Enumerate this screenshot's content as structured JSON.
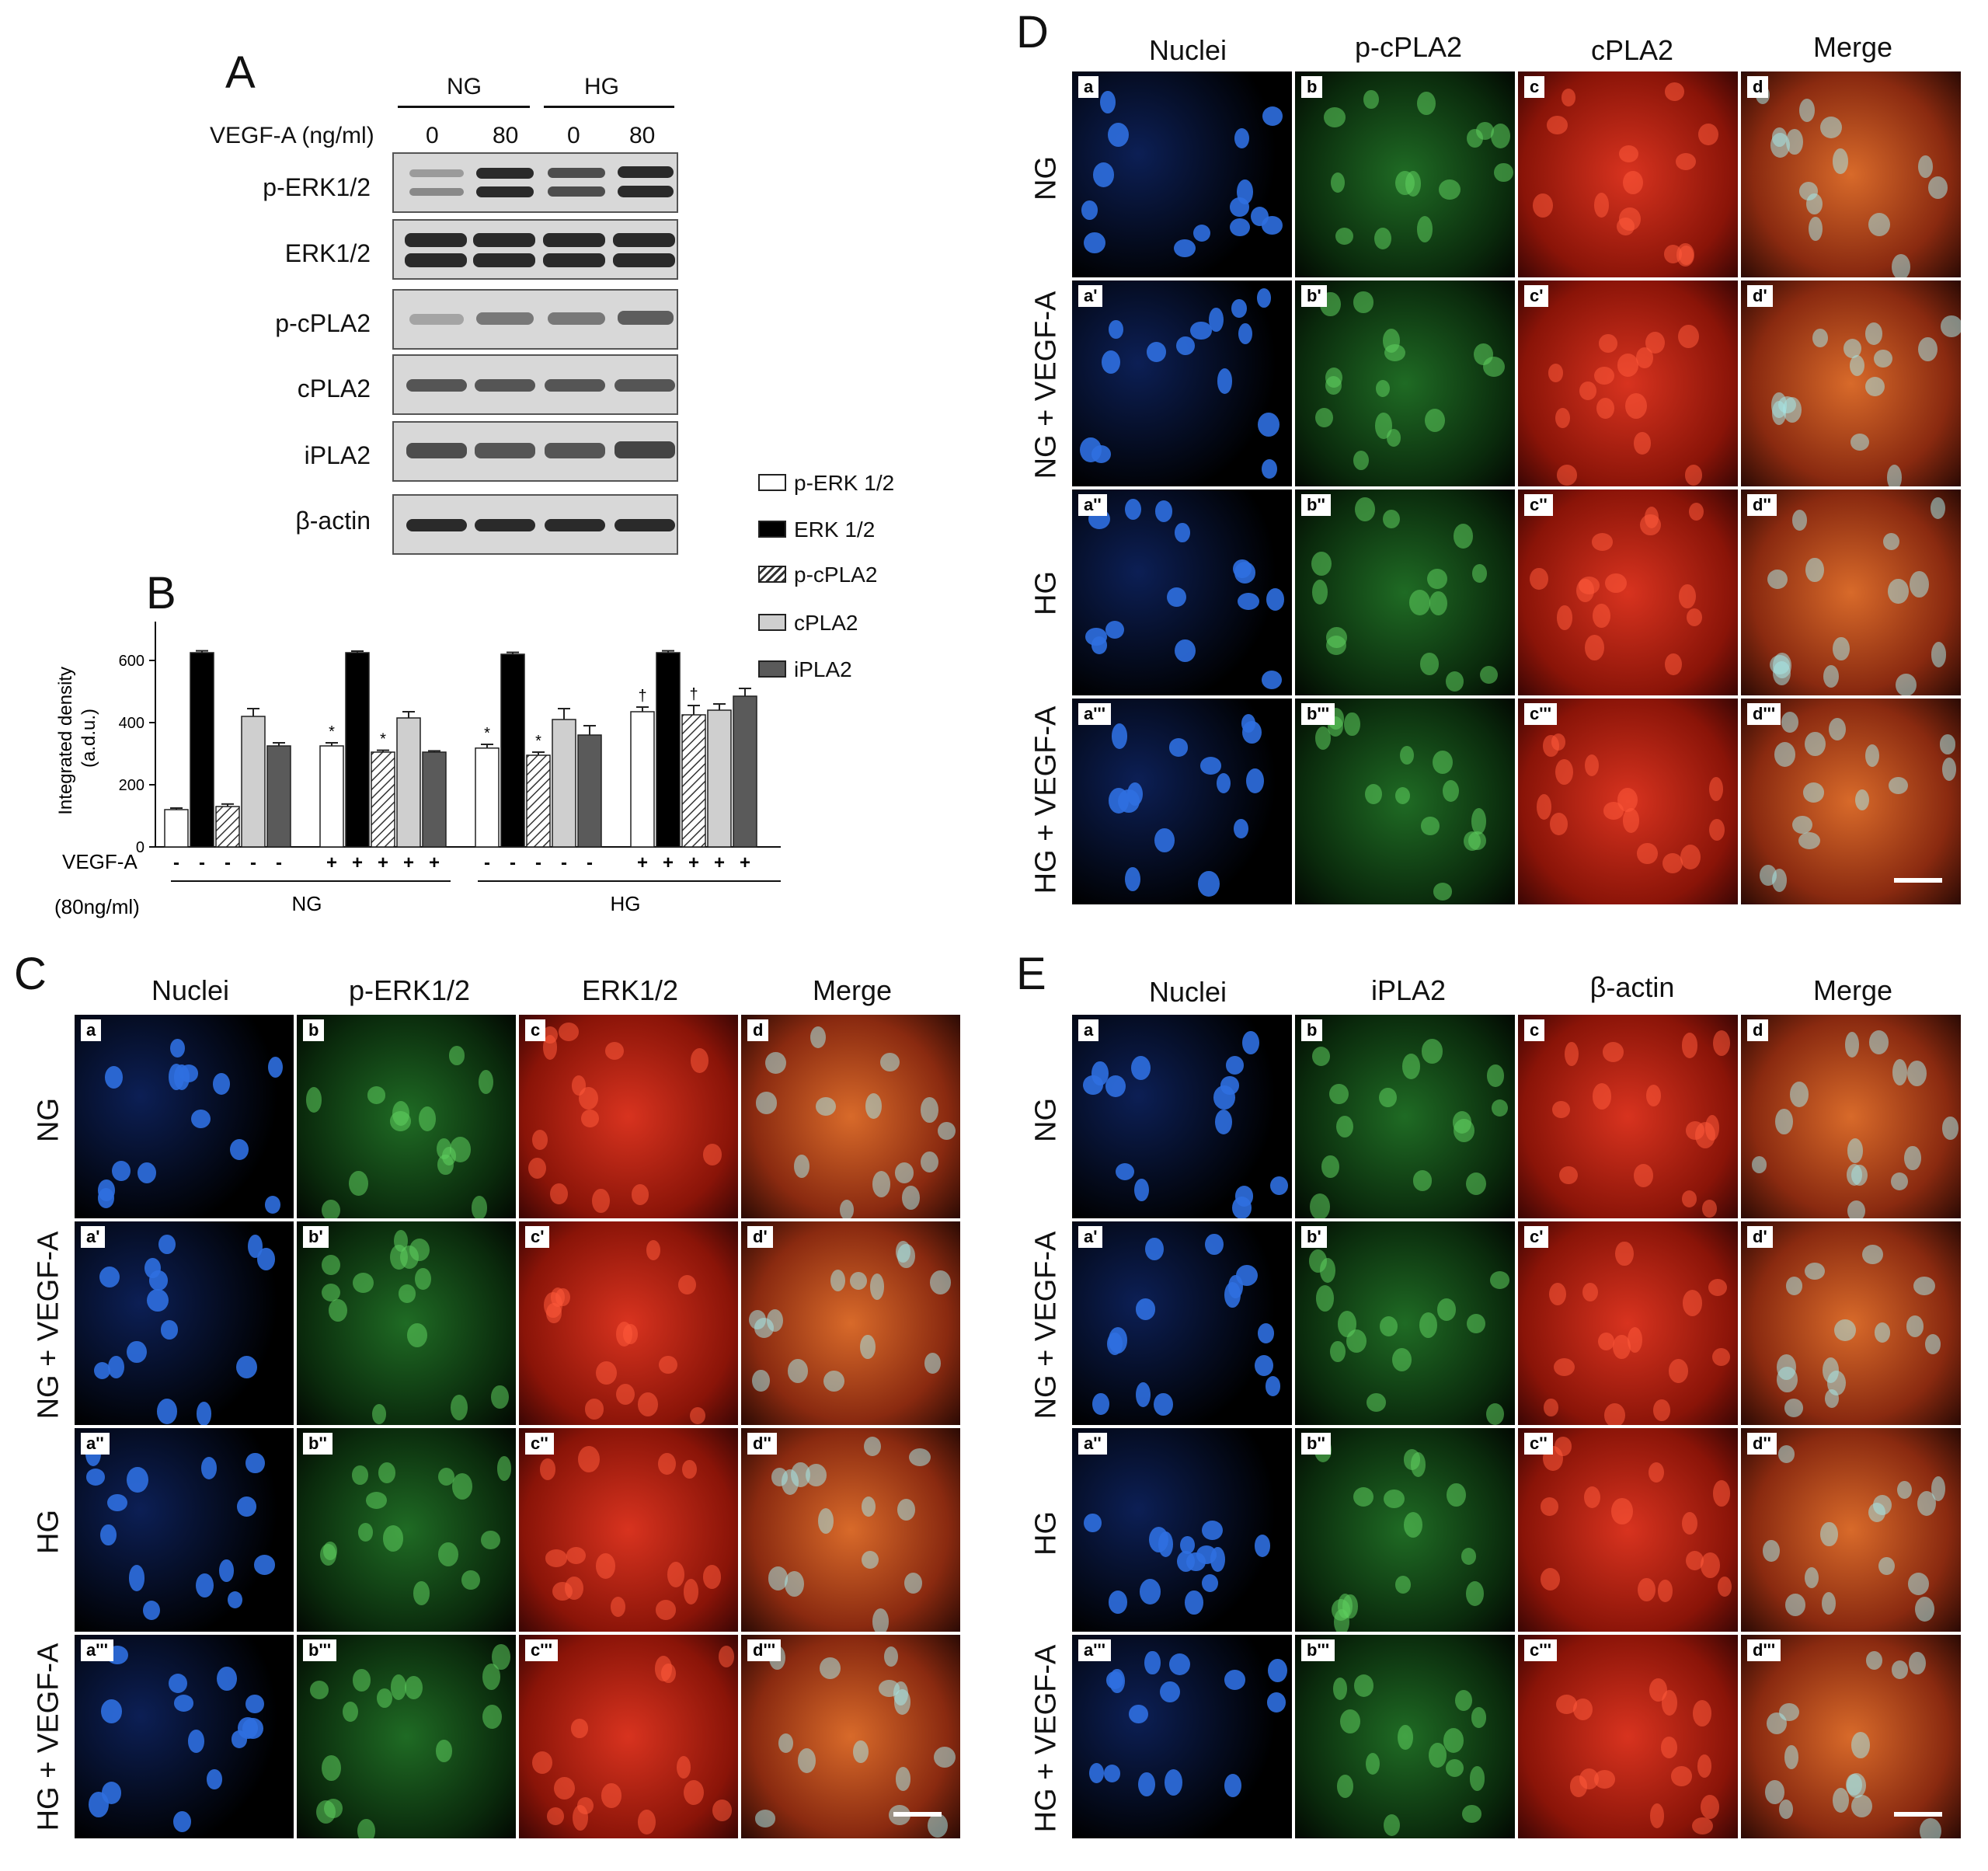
{
  "panels": {
    "A": "A",
    "B": "B",
    "C": "C",
    "D": "D",
    "E": "E"
  },
  "blot": {
    "group_ng": "NG",
    "group_hg": "HG",
    "treatment_label": "VEGF-A (ng/ml)",
    "doses": [
      "0",
      "80",
      "0",
      "80"
    ],
    "rows": [
      "p-ERK1/2",
      "ERK1/2",
      "p-cPLA2",
      "cPLA2",
      "iPLA2",
      "β-actin"
    ]
  },
  "chart_data": {
    "type": "bar",
    "ylabel": "Integrated density\n(a.d.u.)",
    "ylim": [
      0,
      700
    ],
    "yticks": [
      0,
      200,
      400,
      600
    ],
    "xlabel_line1": "VEGF-A",
    "xlabel_line2": "(80ng/ml)",
    "groups": [
      "NG",
      "HG"
    ],
    "conditions": [
      {
        "vegf": "-",
        "group": "NG"
      },
      {
        "vegf": "+",
        "group": "NG"
      },
      {
        "vegf": "-",
        "group": "HG"
      },
      {
        "vegf": "+",
        "group": "HG"
      }
    ],
    "series": [
      {
        "name": "p-ERK 1/2",
        "values": [
          120,
          325,
          318,
          435
        ],
        "errors": [
          5,
          10,
          12,
          15
        ],
        "marks": [
          "",
          "*",
          "*",
          "†"
        ]
      },
      {
        "name": "ERK 1/2",
        "values": [
          625,
          625,
          620,
          625
        ],
        "errors": [
          6,
          5,
          6,
          6
        ],
        "marks": [
          "",
          "",
          "",
          ""
        ]
      },
      {
        "name": "p-cPLA2",
        "values": [
          130,
          305,
          295,
          425
        ],
        "errors": [
          8,
          6,
          10,
          30
        ],
        "marks": [
          "",
          "*",
          "*",
          "†"
        ]
      },
      {
        "name": "cPLA2",
        "values": [
          420,
          415,
          410,
          440
        ],
        "errors": [
          25,
          20,
          35,
          20
        ],
        "marks": [
          "",
          "",
          "",
          ""
        ]
      },
      {
        "name": "iPLA2",
        "values": [
          325,
          305,
          360,
          485
        ],
        "errors": [
          10,
          4,
          30,
          25
        ],
        "marks": [
          "",
          "",
          "",
          ""
        ]
      }
    ],
    "colors": [
      "#ffffff",
      "#000000",
      "hatched",
      "#cfcfcf",
      "#5a5a5a"
    ],
    "plus": "+",
    "minus": "-"
  },
  "micro_C": {
    "columns": [
      "Nuclei",
      "p-ERK1/2",
      "ERK1/2",
      "Merge"
    ],
    "rows": [
      "NG",
      "NG + VEGF-A",
      "HG",
      "HG + VEGF-A"
    ],
    "tags": [
      [
        "a",
        "b",
        "c",
        "d"
      ],
      [
        "a'",
        "b'",
        "c'",
        "d'"
      ],
      [
        "a''",
        "b''",
        "c''",
        "d''"
      ],
      [
        "a'''",
        "b'''",
        "c'''",
        "d'''"
      ]
    ]
  },
  "micro_D": {
    "columns": [
      "Nuclei",
      "p-cPLA2",
      "cPLA2",
      "Merge"
    ],
    "rows": [
      "NG",
      "NG + VEGF-A",
      "HG",
      "HG + VEGF-A"
    ],
    "tags": [
      [
        "a",
        "b",
        "c",
        "d"
      ],
      [
        "a'",
        "b'",
        "c'",
        "d'"
      ],
      [
        "a''",
        "b''",
        "c''",
        "d''"
      ],
      [
        "a'''",
        "b'''",
        "c'''",
        "d'''"
      ]
    ]
  },
  "micro_E": {
    "columns": [
      "Nuclei",
      "iPLA2",
      "β-actin",
      "Merge"
    ],
    "rows": [
      "NG",
      "NG + VEGF-A",
      "HG",
      "HG + VEGF-A"
    ],
    "tags": [
      [
        "a",
        "b",
        "c",
        "d"
      ],
      [
        "a'",
        "b'",
        "c'",
        "d'"
      ],
      [
        "a''",
        "b''",
        "c''",
        "d''"
      ],
      [
        "a'''",
        "b'''",
        "c'''",
        "d'''"
      ]
    ]
  }
}
